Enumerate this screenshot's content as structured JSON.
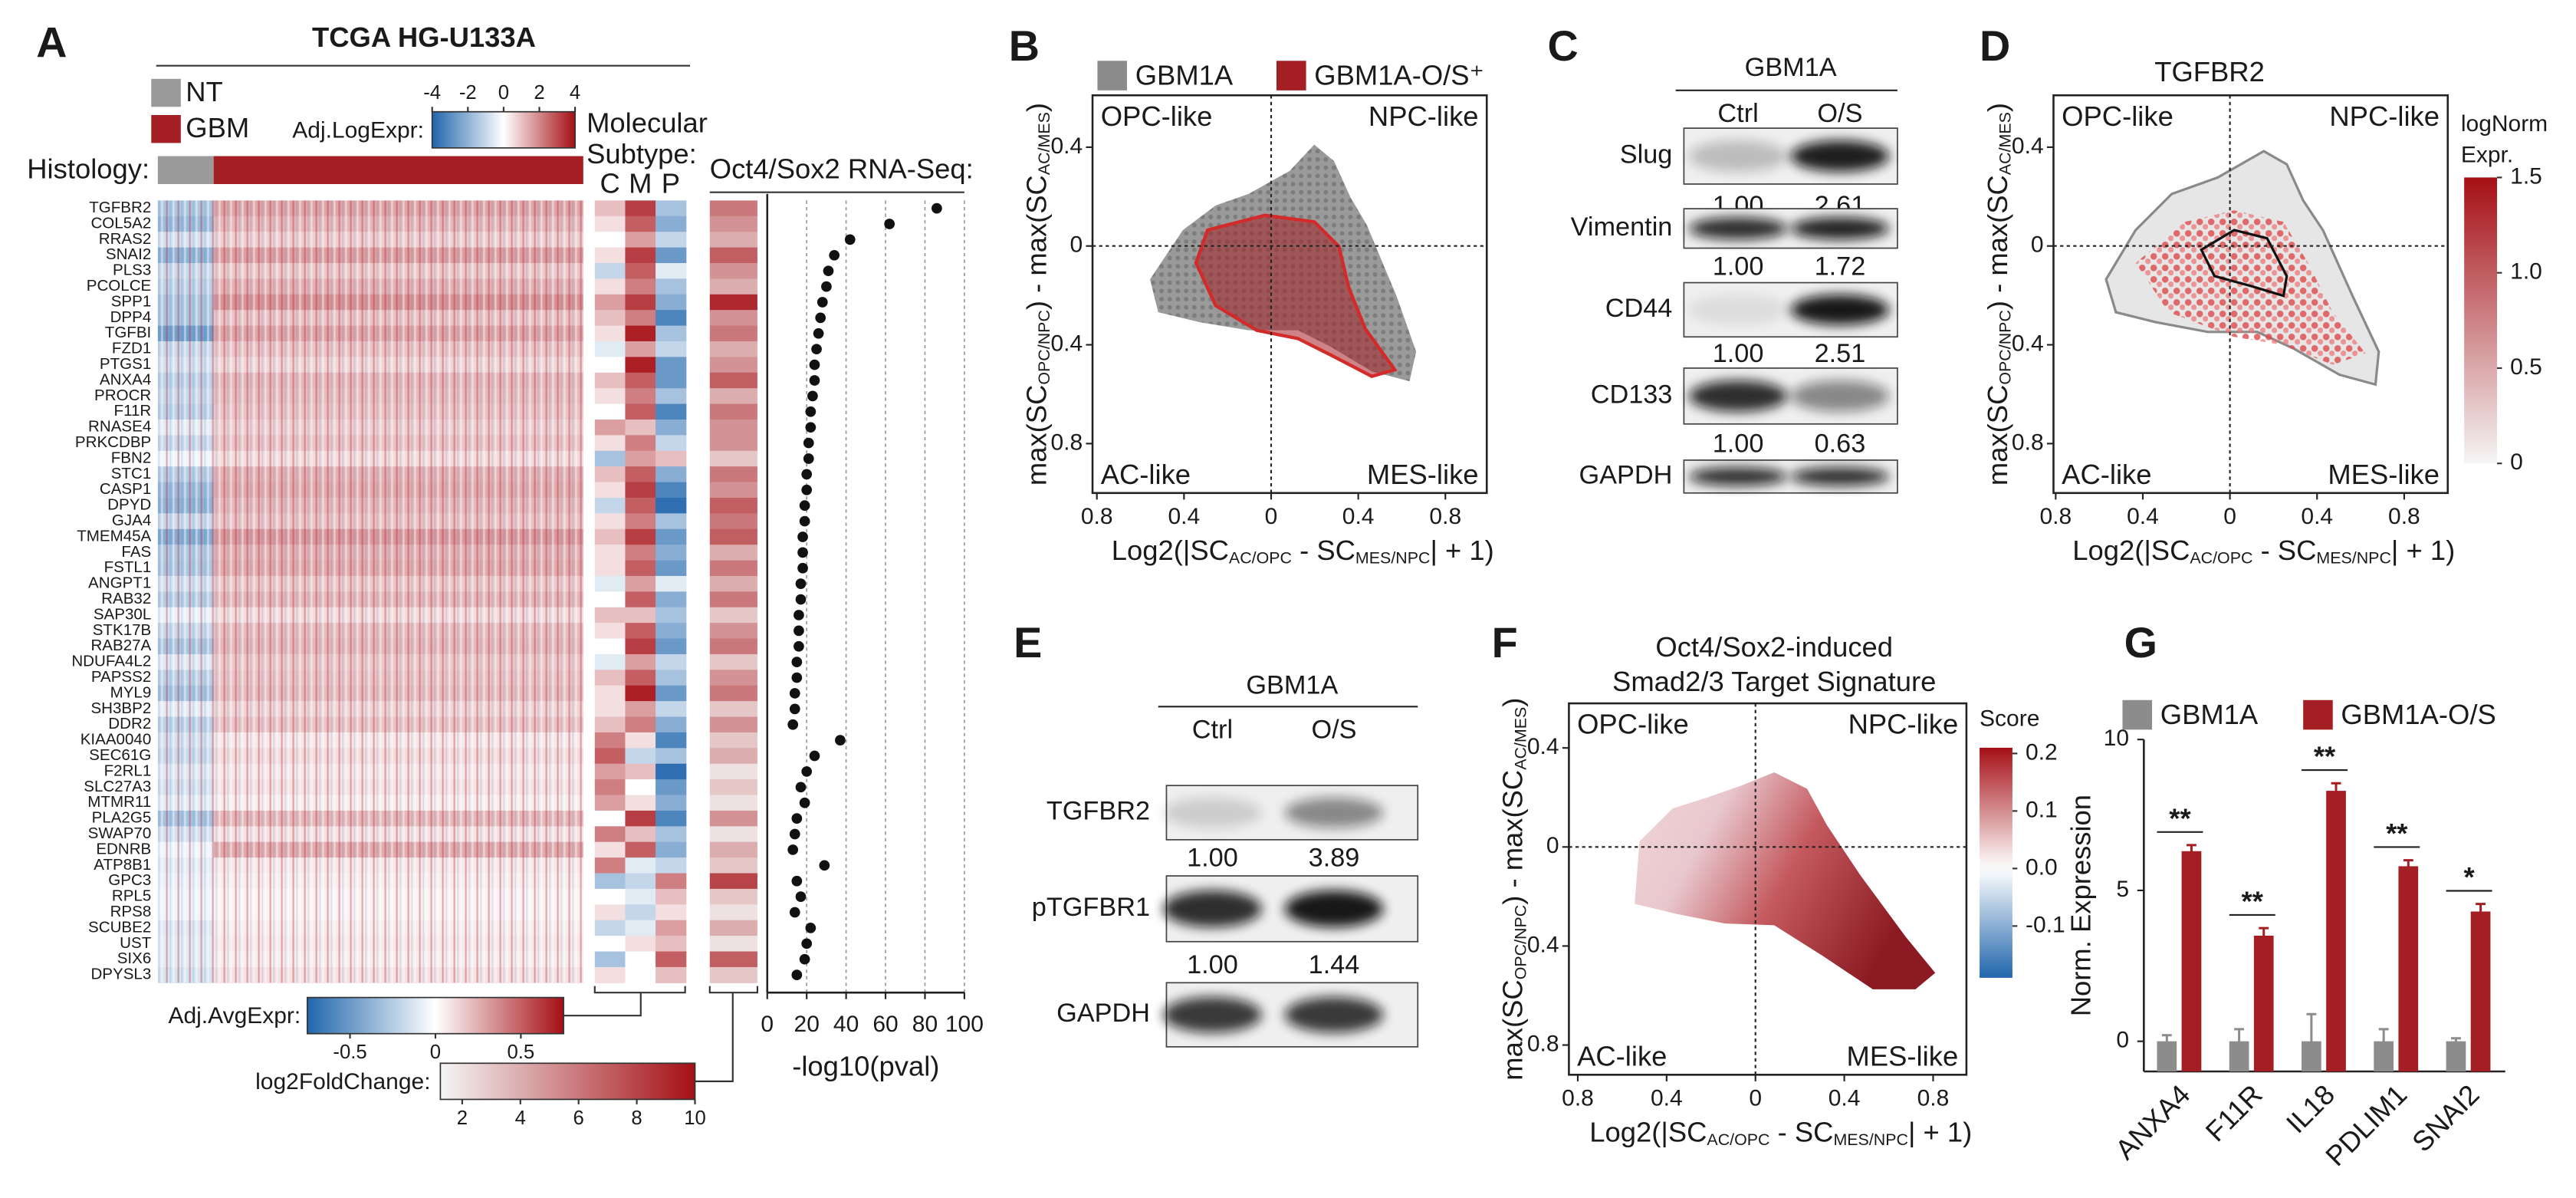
{
  "panel_labels": [
    "A",
    "B",
    "C",
    "D",
    "E",
    "F",
    "G"
  ],
  "blots": [
    {
      "header": "GBM1A",
      "lanes": [
        "Ctrl",
        "O/S"
      ],
      "rows": [
        {
          "label": "Slug",
          "quant": [
            "1.00",
            "2.61"
          ]
        },
        {
          "label": "Vimentin",
          "quant": [
            "1.00",
            "1.72"
          ]
        },
        {
          "label": "CD44",
          "quant": [
            "1.00",
            "2.51"
          ]
        },
        {
          "label": "CD133",
          "quant": [
            "1.00",
            "0.63"
          ]
        },
        {
          "label": "GAPDH"
        }
      ]
    },
    {
      "header": "GBM1A",
      "lanes": [
        "Ctrl",
        "O/S"
      ],
      "rows": [
        {
          "label": "TGFBR2",
          "quant": [
            "1.00",
            "3.89"
          ]
        },
        {
          "label": "pTGFBR1",
          "quant": [
            "1.00",
            "1.44"
          ]
        },
        {
          "label": "GAPDH"
        }
      ]
    }
  ],
  "chart_data": [
    {
      "type": "heatmap",
      "title": "TCGA HG-U133A",
      "histology_label": "Histology:",
      "legend": [
        {
          "name": "NT",
          "color": "#9a9a9a"
        },
        {
          "name": "GBM",
          "color": "#a31f24"
        }
      ],
      "categories": [
        "TGFBR2",
        "COL5A2",
        "RRAS2",
        "SNAI2",
        "PLS3",
        "PCOLCE",
        "SPP1",
        "DPP4",
        "TGFBI",
        "FZD1",
        "PTGS1",
        "ANXA4",
        "PROCR",
        "F11R",
        "RNASE4",
        "PRKCDBP",
        "FBN2",
        "STC1",
        "CASP1",
        "DPYD",
        "GJA4",
        "TMEM45A",
        "FAS",
        "FSTL1",
        "ANGPT1",
        "RAB32",
        "SAP30L",
        "STK17B",
        "RAB27A",
        "NDUFA4L2",
        "PAPSS2",
        "MYL9",
        "SH3BP2",
        "DDR2",
        "KIAA0040",
        "SEC61G",
        "F2RL1",
        "SLC27A3",
        "MTMR11",
        "PLA2G5",
        "SWAP70",
        "EDNRB",
        "ATP8B1",
        "GPC3",
        "RPL5",
        "RPS8",
        "SCUBE2",
        "UST",
        "SIX6",
        "DPYSL3"
      ],
      "label_colors": [
        "#d9302c",
        "#d9302c",
        "#222",
        "#d9302c",
        "#222",
        "#d9302c",
        "#d9302c",
        "#d9302c",
        "#d9302c",
        "#d9302c",
        "#222",
        "#d9302c",
        "#d9302c",
        "#d9302c",
        "#d9302c",
        "#d9302c",
        "#222",
        "#d9302c",
        "#d9302c",
        "#d9302c",
        "#d9302c",
        "#222",
        "#d9302c",
        "#d9302c",
        "#222",
        "#d9302c",
        "#222",
        "#d9302c",
        "#d9302c",
        "#222",
        "#d9302c",
        "#d9302c",
        "#222",
        "#d9302c",
        "#222",
        "#222",
        "#222",
        "#222",
        "#222",
        "#222",
        "#222",
        "#222",
        "#222",
        "#222",
        "#222",
        "#222",
        "#222",
        "#222",
        "#222",
        "#222"
      ],
      "nt_values": [
        -1.5,
        -1.8,
        -0.8,
        -2.0,
        -1.0,
        -1.2,
        -1.5,
        -1.5,
        -2.5,
        -1.0,
        -0.8,
        -1.2,
        -1.0,
        -1.2,
        -0.5,
        -1.0,
        -0.3,
        -1.3,
        -1.8,
        -2.0,
        -1.0,
        -2.2,
        -1.4,
        -1.5,
        -0.8,
        -1.3,
        -0.4,
        -1.0,
        -1.5,
        -0.6,
        -1.2,
        -1.6,
        -0.5,
        -1.2,
        -0.8,
        -1.0,
        -0.6,
        -0.8,
        -0.5,
        -1.6,
        -0.8,
        -0.3,
        -0.5,
        -0.4,
        -0.3,
        -0.3,
        -0.6,
        -0.5,
        -0.5,
        -0.7
      ],
      "gbm_values": [
        1.5,
        1.2,
        0.8,
        1.6,
        0.9,
        1.3,
        1.8,
        1.0,
        1.5,
        1.0,
        0.7,
        1.2,
        1.1,
        1.0,
        0.8,
        1.0,
        0.6,
        1.3,
        1.4,
        1.2,
        1.0,
        1.7,
        1.3,
        1.4,
        0.9,
        1.2,
        0.6,
        1.1,
        1.2,
        0.9,
        1.0,
        1.1,
        0.7,
        1.0,
        0.4,
        0.6,
        0.4,
        0.5,
        0.3,
        1.2,
        0.5,
        1.4,
        0.4,
        0.3,
        0.2,
        0.2,
        0.3,
        0.4,
        0.3,
        0.5
      ],
      "colorbar": {
        "label": "Adj.LogExpr:",
        "lim": [
          -4,
          4
        ],
        "ticks": [
          -4,
          -2,
          0,
          2,
          4
        ]
      }
    },
    {
      "type": "heatmap",
      "title": [
        "Molecular",
        "Subtype:"
      ],
      "columns": [
        "C",
        "M",
        "P"
      ],
      "values": [
        [
          0.2,
          0.6,
          -0.3
        ],
        [
          0.1,
          0.5,
          -0.4
        ],
        [
          0.0,
          0.3,
          -0.2
        ],
        [
          0.1,
          0.6,
          -0.5
        ],
        [
          -0.2,
          0.5,
          -0.1
        ],
        [
          0.1,
          0.4,
          -0.3
        ],
        [
          0.3,
          0.6,
          -0.4
        ],
        [
          0.2,
          0.4,
          -0.6
        ],
        [
          0.1,
          0.7,
          -0.3
        ],
        [
          -0.1,
          0.3,
          -0.2
        ],
        [
          0.0,
          0.7,
          -0.5
        ],
        [
          0.2,
          0.5,
          -0.5
        ],
        [
          0.1,
          0.4,
          -0.3
        ],
        [
          0.0,
          0.5,
          -0.6
        ],
        [
          0.3,
          0.2,
          -0.4
        ],
        [
          0.1,
          0.4,
          -0.2
        ],
        [
          -0.3,
          0.3,
          0.2
        ],
        [
          0.2,
          0.5,
          -0.4
        ],
        [
          0.1,
          0.6,
          -0.6
        ],
        [
          -0.2,
          0.5,
          -0.7
        ],
        [
          0.1,
          0.4,
          -0.3
        ],
        [
          0.2,
          0.6,
          -0.5
        ],
        [
          0.1,
          0.4,
          -0.4
        ],
        [
          0.1,
          0.5,
          -0.5
        ],
        [
          -0.1,
          0.3,
          -0.1
        ],
        [
          0.0,
          0.5,
          -0.4
        ],
        [
          0.2,
          0.2,
          -0.3
        ],
        [
          0.1,
          0.5,
          -0.4
        ],
        [
          0.0,
          0.6,
          -0.5
        ],
        [
          -0.1,
          0.3,
          -0.2
        ],
        [
          0.2,
          0.5,
          -0.3
        ],
        [
          0.1,
          0.7,
          -0.5
        ],
        [
          0.1,
          0.3,
          -0.2
        ],
        [
          0.2,
          0.4,
          -0.4
        ],
        [
          0.4,
          0.1,
          -0.6
        ],
        [
          0.5,
          -0.2,
          -0.3
        ],
        [
          0.3,
          0.2,
          -0.7
        ],
        [
          0.4,
          0.0,
          -0.5
        ],
        [
          0.3,
          0.1,
          -0.4
        ],
        [
          0.0,
          0.6,
          -0.6
        ],
        [
          0.4,
          0.2,
          -0.3
        ],
        [
          0.1,
          0.5,
          -0.4
        ],
        [
          0.4,
          -0.1,
          -0.2
        ],
        [
          -0.3,
          -0.2,
          0.4
        ],
        [
          0.0,
          -0.1,
          0.2
        ],
        [
          0.1,
          -0.2,
          0.1
        ],
        [
          -0.2,
          -0.1,
          0.3
        ],
        [
          0.0,
          0.1,
          0.2
        ],
        [
          -0.3,
          0.0,
          0.5
        ],
        [
          0.1,
          0.0,
          0.2
        ]
      ],
      "colorbar": {
        "label": "Adj.AvgExpr:",
        "lim": [
          -0.75,
          0.75
        ],
        "ticks": [
          -0.5,
          0,
          0.5
        ]
      }
    },
    {
      "type": "heatmap",
      "title": "Oct4/Sox2 RNA-Seq:",
      "values": [
        6,
        5,
        4,
        7,
        5,
        4,
        9,
        5,
        6,
        4,
        5,
        7,
        4,
        6,
        5,
        5,
        3,
        6,
        5,
        7,
        6,
        7,
        4,
        6,
        4,
        6,
        3,
        5,
        6,
        3,
        5,
        6,
        3,
        5,
        3,
        4,
        2,
        3,
        2,
        5,
        2,
        4,
        3,
        8,
        3,
        2,
        4,
        2,
        7,
        3
      ],
      "colorbar": {
        "label": "log2FoldChange:",
        "lim": [
          1.25,
          10
        ],
        "ticks": [
          2,
          4,
          6,
          8,
          10
        ]
      }
    },
    {
      "type": "dot",
      "values": [
        86,
        62,
        42,
        34,
        31,
        30,
        28,
        27,
        26,
        25,
        24,
        24,
        23,
        22,
        22,
        21,
        21,
        20,
        20,
        19,
        19,
        18,
        18,
        18,
        17,
        17,
        16,
        16,
        16,
        15,
        15,
        14,
        14,
        13,
        37,
        24,
        20,
        17,
        19,
        15,
        14,
        13,
        29,
        15,
        17,
        14,
        22,
        20,
        19,
        15
      ],
      "xlim": [
        0,
        100
      ],
      "xticks": [
        0,
        20,
        40,
        60,
        80,
        100
      ],
      "xlabel": "-log10(pval)",
      "grid": true
    },
    {
      "type": "scatter",
      "series": [
        {
          "name": "GBM1A",
          "color": "#8c8c8c"
        },
        {
          "name": "GBM1A-O/S⁺",
          "color": "#a31f24"
        }
      ],
      "quadrants": [
        "OPC-like",
        "NPC-like",
        "AC-like",
        "MES-like"
      ],
      "xlabel": [
        "Log2(|SC",
        "AC/OPC",
        " - SC",
        "MES/NPC",
        "| + 1)"
      ],
      "ylabel": [
        "max(SC",
        "OPC/NPC",
        ") - max(SC",
        "AC/MES",
        ")"
      ],
      "xlim": [
        -0.82,
        0.99
      ],
      "ylim": [
        -1.0,
        0.61
      ],
      "xticks": [
        {
          "value": -0.8,
          "label": "0.8"
        },
        {
          "value": -0.4,
          "label": "0.4"
        },
        0,
        0.4,
        0.8
      ],
      "yticks": [
        0.4,
        0,
        {
          "value": -0.4,
          "label": "0.4"
        },
        {
          "value": -0.8,
          "label": "0.8"
        }
      ]
    },
    {
      "type": "scatter",
      "title": "TGFBR2",
      "quadrants": [
        "OPC-like",
        "NPC-like",
        "AC-like",
        "MES-like"
      ],
      "xlabel": [
        "Log2(|SC",
        "AC/OPC",
        " - SC",
        "MES/NPC",
        "| + 1)"
      ],
      "ylabel": [
        "max(SC",
        "OPC/NPC",
        ") - max(SC",
        "AC/MES",
        ")"
      ],
      "xlim": [
        -0.81,
        1.0
      ],
      "ylim": [
        -1.0,
        0.61
      ],
      "xticks": [
        {
          "value": -0.8,
          "label": "0.8"
        },
        {
          "value": -0.4,
          "label": "0.4"
        },
        0,
        0.4,
        0.8
      ],
      "yticks": [
        0.4,
        0,
        {
          "value": -0.4,
          "label": "0.4"
        },
        {
          "value": -0.8,
          "label": "0.8"
        }
      ],
      "colorbar": {
        "label": [
          "logNorm",
          "Expr."
        ],
        "lim": [
          0,
          1.5
        ],
        "ticks": [
          1.5,
          {
            "value": 1,
            "label": "1.0"
          },
          0.5,
          0
        ]
      }
    },
    {
      "type": "scatter",
      "title": [
        "Oct4/Sox2-induced",
        "Smad2/3 Target Signature"
      ],
      "quadrants": [
        "OPC-like",
        "NPC-like",
        "AC-like",
        "MES-like"
      ],
      "xlabel": [
        "Log2(|SC",
        "AC/OPC",
        " - SC",
        "MES/NPC",
        "| + 1)"
      ],
      "ylabel": [
        "max(SC",
        "OPC/NPC",
        ") - max(SC",
        "AC/MES",
        ")"
      ],
      "xlim": [
        -0.84,
        0.95
      ],
      "ylim": [
        -0.92,
        0.58
      ],
      "xticks": [
        {
          "value": -0.8,
          "label": "0.8"
        },
        {
          "value": -0.4,
          "label": "0.4"
        },
        0,
        0.4,
        0.8
      ],
      "yticks": [
        0.4,
        0,
        {
          "value": -0.4,
          "label": "0.4"
        },
        {
          "value": -0.8,
          "label": "0.8"
        }
      ],
      "colorbar": {
        "label": "Score",
        "lim": [
          -0.19,
          0.21
        ],
        "ticks": [
          0.2,
          0.1,
          {
            "value": 0,
            "label": "0.0"
          },
          -0.1
        ]
      }
    },
    {
      "type": "bar",
      "categories": [
        "ANXA4",
        "F11R",
        "IL18",
        "PDLIM1",
        "SNAI2"
      ],
      "series": [
        {
          "name": "GBM1A",
          "color": "#8c8c8c",
          "values": [
            0,
            0,
            0,
            0,
            0
          ],
          "errors": [
            0.2,
            0.4,
            0.9,
            0.4,
            0.1
          ]
        },
        {
          "name": "GBM1A-O/S",
          "color": "#a31f24",
          "values": [
            6.3,
            3.5,
            8.3,
            5.8,
            4.3
          ],
          "errors": [
            0.2,
            0.25,
            0.25,
            0.2,
            0.25
          ]
        }
      ],
      "annotations": [
        "**",
        "**",
        "**",
        "**",
        "*"
      ],
      "ylabel": "Norm. Expression",
      "ylim": [
        -1,
        10
      ],
      "yticks": [
        0,
        5,
        10
      ]
    }
  ]
}
